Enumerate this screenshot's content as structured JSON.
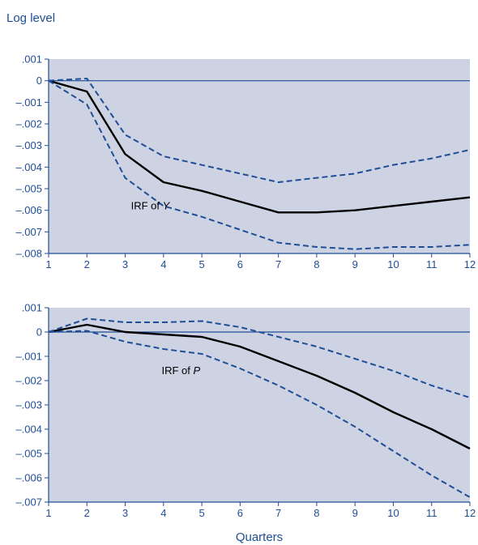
{
  "figure": {
    "ylabel": "Log level",
    "xlabel": "Quarters"
  },
  "colors": {
    "plot_background": "#cdd3e3",
    "axis": "#1f4e96",
    "estimate_line": "#000000",
    "band_line": "#1f4e96"
  },
  "chart_data": [
    {
      "type": "line",
      "title": "",
      "annotation": {
        "prefix": "IRF of ",
        "variable": "Y"
      },
      "x": [
        1,
        2,
        3,
        4,
        5,
        6,
        7,
        8,
        9,
        10,
        11,
        12
      ],
      "xlim": [
        1,
        12
      ],
      "ylim": [
        -0.008,
        0.001
      ],
      "yticks": [
        0.001,
        0,
        -0.001,
        -0.002,
        -0.003,
        -0.004,
        -0.005,
        -0.006,
        -0.007,
        -0.008
      ],
      "ytick_labels": [
        ".001",
        "0",
        "–.001",
        "–.002",
        "–.003",
        "–.004",
        "–.005",
        "–.006",
        "–.007",
        "–.008"
      ],
      "xtick_labels": [
        "1",
        "2",
        "3",
        "4",
        "5",
        "6",
        "7",
        "8",
        "9",
        "10",
        "11",
        "12"
      ],
      "grid": false,
      "zero_line": true,
      "series": [
        {
          "style": "solid",
          "values": [
            0,
            -0.0005,
            -0.0034,
            -0.0047,
            -0.0051,
            -0.0056,
            -0.0061,
            -0.0061,
            -0.006,
            -0.0058,
            -0.0056,
            -0.0054
          ]
        },
        {
          "style": "dashed",
          "values": [
            0,
            0.0001,
            -0.0025,
            -0.0035,
            -0.0039,
            -0.0043,
            -0.0047,
            -0.0045,
            -0.0043,
            -0.0039,
            -0.0036,
            -0.0032
          ]
        },
        {
          "style": "dashed",
          "values": [
            0,
            -0.0011,
            -0.0045,
            -0.0058,
            -0.0063,
            -0.0069,
            -0.0075,
            -0.0077,
            -0.0078,
            -0.0077,
            -0.0077,
            -0.0076
          ]
        }
      ]
    },
    {
      "type": "line",
      "title": "",
      "annotation": {
        "prefix": "IRF of ",
        "variable": "P"
      },
      "x": [
        1,
        2,
        3,
        4,
        5,
        6,
        7,
        8,
        9,
        10,
        11,
        12
      ],
      "xlim": [
        1,
        12
      ],
      "ylim": [
        -0.007,
        0.001
      ],
      "yticks": [
        0.001,
        0,
        -0.001,
        -0.002,
        -0.003,
        -0.004,
        -0.005,
        -0.006,
        -0.007
      ],
      "ytick_labels": [
        ".001",
        "0",
        "–.001",
        "–.002",
        "–.003",
        "–.004",
        "–.005",
        "–.006",
        "–.007"
      ],
      "xtick_labels": [
        "1",
        "2",
        "3",
        "4",
        "5",
        "6",
        "7",
        "8",
        "9",
        "10",
        "11",
        "12"
      ],
      "grid": false,
      "zero_line": true,
      "series": [
        {
          "style": "solid",
          "values": [
            0,
            0.0003,
            0,
            -0.0001,
            -0.0002,
            -0.0006,
            -0.0012,
            -0.0018,
            -0.0025,
            -0.0033,
            -0.004,
            -0.0048
          ]
        },
        {
          "style": "dashed",
          "values": [
            0,
            0.00055,
            0.0004,
            0.0004,
            0.00045,
            0.0002,
            -0.0002,
            -0.0006,
            -0.0011,
            -0.0016,
            -0.0022,
            -0.0027
          ]
        },
        {
          "style": "dashed",
          "values": [
            0,
            5e-05,
            -0.0004,
            -0.0007,
            -0.0009,
            -0.0015,
            -0.0022,
            -0.003,
            -0.0039,
            -0.0049,
            -0.0059,
            -0.0068
          ]
        }
      ]
    }
  ]
}
